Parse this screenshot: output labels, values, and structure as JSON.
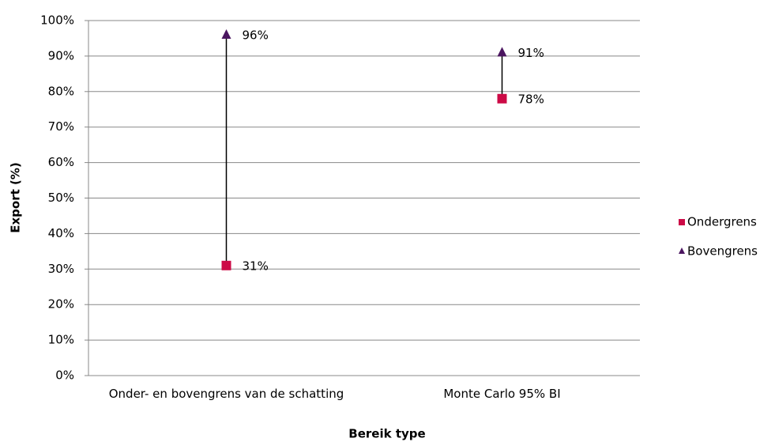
{
  "chart_data": {
    "type": "highlow",
    "x_label": "Bereik type",
    "y_label": "Export (%)",
    "categories": [
      "Onder- en bovengrens van de schatting",
      "Monte Carlo 95% BI"
    ],
    "series": [
      {
        "name": "Ondergrens",
        "color": "#cc0a46",
        "marker": "square",
        "values": [
          31,
          78
        ],
        "value_labels": [
          "31%",
          "78%"
        ]
      },
      {
        "name": "Bovengrens",
        "color": "#4b1660",
        "marker": "triangle",
        "values": [
          96,
          91
        ],
        "value_labels": [
          "96%",
          "91%"
        ]
      }
    ],
    "ylim": [
      0,
      100
    ],
    "yticks": [
      {
        "value": 0,
        "label": "0%"
      },
      {
        "value": 10,
        "label": "10%"
      },
      {
        "value": 20,
        "label": "20%"
      },
      {
        "value": 30,
        "label": "30%"
      },
      {
        "value": 40,
        "label": "40%"
      },
      {
        "value": 50,
        "label": "50%"
      },
      {
        "value": 60,
        "label": "60%"
      },
      {
        "value": 70,
        "label": "70%"
      },
      {
        "value": 80,
        "label": "80%"
      },
      {
        "value": 90,
        "label": "90%"
      },
      {
        "value": 100,
        "label": "100%"
      }
    ],
    "grid": true,
    "legend": "right"
  }
}
